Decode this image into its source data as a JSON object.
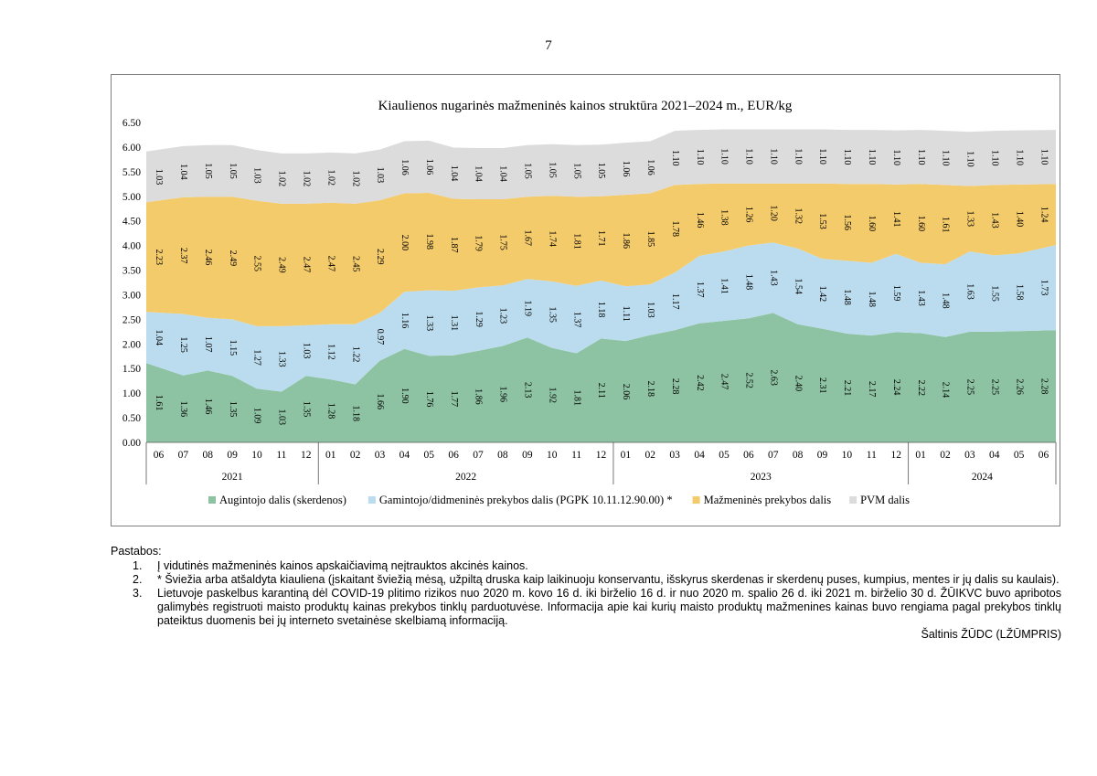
{
  "page": {
    "number": "7"
  },
  "chart_data": {
    "type": "area",
    "stacked": true,
    "title": "Kiaulienos nugarinės mažmeninės kainos struktūra 2021–2024 m., EUR/kg",
    "categories": [
      "06",
      "07",
      "08",
      "09",
      "10",
      "11",
      "12",
      "01",
      "02",
      "03",
      "04",
      "05",
      "06",
      "07",
      "08",
      "09",
      "10",
      "11",
      "12",
      "01",
      "02",
      "03",
      "04",
      "05",
      "06",
      "07",
      "08",
      "09",
      "10",
      "11",
      "12",
      "01",
      "02",
      "03",
      "04",
      "05",
      "06"
    ],
    "years": [
      {
        "label": "2021",
        "count": 7
      },
      {
        "label": "2022",
        "count": 12
      },
      {
        "label": "2023",
        "count": 12
      },
      {
        "label": "2024",
        "count": 6
      }
    ],
    "ylim": [
      0,
      6.5
    ],
    "yticks": [
      "0.00",
      "0.50",
      "1.00",
      "1.50",
      "2.00",
      "2.50",
      "3.00",
      "3.50",
      "4.00",
      "4.50",
      "5.00",
      "5.50",
      "6.00",
      "6.50"
    ],
    "series": [
      {
        "name": "Augintojo dalis (skerdenos)",
        "color": "#8dc3a3",
        "values": [
          1.61,
          1.36,
          1.46,
          1.35,
          1.09,
          1.03,
          1.35,
          1.28,
          1.18,
          1.66,
          1.9,
          1.76,
          1.77,
          1.86,
          1.96,
          2.13,
          1.92,
          1.81,
          2.11,
          2.06,
          2.18,
          2.28,
          2.42,
          2.47,
          2.52,
          2.63,
          2.4,
          2.31,
          2.21,
          2.17,
          2.24,
          2.22,
          2.14,
          2.25,
          2.25,
          2.26,
          2.28
        ],
        "labels": [
          "1.61",
          "1.36",
          "1.46",
          "1.35",
          "1.09",
          "1.03",
          "1.35",
          "1.28",
          "1.18",
          "1.66",
          "1.90",
          "1.76",
          "1.77",
          "1.86",
          "1.96",
          "2.13",
          "1.92",
          "1.81",
          "2.11",
          "2.06",
          "2.18",
          "2.28",
          "2.42",
          "2.47",
          "2.52",
          "2.63",
          "2.40",
          "2.31",
          "2.21",
          "2.17",
          "2.24",
          "2.22",
          "2.14",
          "2.25",
          "2.25",
          "2.26",
          "2.28"
        ]
      },
      {
        "name": "Gamintojo/didmeninės prekybos dalis (PGPK 10.11.12.90.00) *",
        "color": "#bbdcee",
        "values": [
          1.04,
          1.25,
          1.07,
          1.15,
          1.27,
          1.33,
          1.03,
          1.12,
          1.22,
          0.97,
          1.16,
          1.33,
          1.31,
          1.29,
          1.23,
          1.19,
          1.35,
          1.37,
          1.18,
          1.11,
          1.03,
          1.17,
          1.37,
          1.41,
          1.48,
          1.43,
          1.54,
          1.42,
          1.48,
          1.48,
          1.59,
          1.43,
          1.48,
          1.63,
          1.55,
          1.58,
          1.73
        ],
        "labels": [
          "1.04",
          "1.25",
          "1.07",
          "1.15",
          "1.27",
          "1.33",
          "1.03",
          "1.12",
          "1.22",
          "0.97",
          "1.16",
          "1.33",
          "1.31",
          "1.29",
          "1.23",
          "1.19",
          "1.35",
          "1.37",
          "1.18",
          "1.11",
          "1.03",
          "1.17",
          "1.37",
          "1.41",
          "1.48",
          "1.43",
          "1.54",
          "1.42",
          "1.48",
          "1.48",
          "1.59",
          "1.43",
          "1.48",
          "1.63",
          "1.55",
          "1.58",
          "1.73"
        ]
      },
      {
        "name": "Mažmeninės prekybos dalis",
        "color": "#f4cb6b",
        "values": [
          2.23,
          2.37,
          2.46,
          2.49,
          2.55,
          2.49,
          2.47,
          2.47,
          2.45,
          2.29,
          2.0,
          1.98,
          1.87,
          1.79,
          1.75,
          1.67,
          1.74,
          1.81,
          1.71,
          1.86,
          1.85,
          1.78,
          1.46,
          1.38,
          1.26,
          1.2,
          1.32,
          1.53,
          1.56,
          1.6,
          1.41,
          1.6,
          1.61,
          1.33,
          1.43,
          1.4,
          1.24
        ],
        "labels": [
          "2.23",
          "2.37",
          "2.46",
          "2.49",
          "2.55",
          "2.49",
          "2.47",
          "2.47",
          "2.45",
          "2.29",
          "2.00",
          "1.98",
          "1.87",
          "1.79",
          "1.75",
          "1.67",
          "1.74",
          "1.81",
          "1.71",
          "1.86",
          "1.85",
          "1.78",
          "1.46",
          "1.38",
          "1.26",
          "1.20",
          "1.32",
          "1.53",
          "1.56",
          "1.60",
          "1.41",
          "1.60",
          "1.61",
          "1.33",
          "1.43",
          "1.40",
          "1.24"
        ]
      },
      {
        "name": "PVM dalis",
        "color": "#dcdcdc",
        "values": [
          1.03,
          1.04,
          1.05,
          1.05,
          1.03,
          1.02,
          1.02,
          1.02,
          1.02,
          1.03,
          1.06,
          1.06,
          1.04,
          1.04,
          1.04,
          1.05,
          1.05,
          1.05,
          1.05,
          1.06,
          1.06,
          1.1,
          1.1,
          1.1,
          1.1,
          1.1,
          1.1,
          1.1,
          1.1,
          1.1,
          1.1,
          1.1,
          1.1,
          1.1,
          1.1,
          1.1,
          1.1
        ],
        "labels": [
          "1.03",
          "1.04",
          "1.05",
          "1.05",
          "1.03",
          "1.02",
          "1.02",
          "1.02",
          "1.02",
          "1.03",
          "1.06",
          "1.06",
          "1.04",
          "1.04",
          "1.04",
          "1.05",
          "1.05",
          "1.05",
          "1.05",
          "1.06",
          "1.06",
          "1.10",
          "1.10",
          "1.10",
          "1.10",
          "1.10",
          "1.10",
          "1.10",
          "1.10",
          "1.10",
          "1.10",
          "1.10",
          "1.10",
          "1.10",
          "1.10",
          "1.10",
          "1.10"
        ]
      }
    ],
    "legend_position": "bottom",
    "grid": false
  },
  "notes": {
    "heading": "Pastabos:",
    "items": [
      {
        "num": "1.",
        "text": "Į vidutinės mažmeninės kainos apskaičiavimą neįtrauktos akcinės kainos."
      },
      {
        "num": "2.",
        "text": "* Šviežia arba atšaldyta kiauliena (įskaitant šviežią mėsą, užpiltą druska kaip laikinuoju konservantu, išskyrus skerdenas ir skerdenų puses, kumpius, mentes ir jų dalis su kaulais)."
      },
      {
        "num": "3.",
        "text": " Lietuvoje paskelbus karantiną dėl COVID-19 plitimo rizikos nuo 2020 m. kovo 16 d. iki birželio 16 d. ir nuo 2020 m. spalio 26 d. iki 2021 m. birželio 30 d. ŽŪIKVC buvo apribotos galimybės registruoti maisto produktų kainas prekybos tinklų parduotuvėse. Informacija apie kai kurių maisto produktų mažmenines kainas buvo rengiama pagal prekybos tinklų pateiktus duomenis bei jų interneto svetainėse skelbiamą informaciją."
      }
    ],
    "source": "Šaltinis ŽŪDC (LŽŪMPRIS)"
  }
}
